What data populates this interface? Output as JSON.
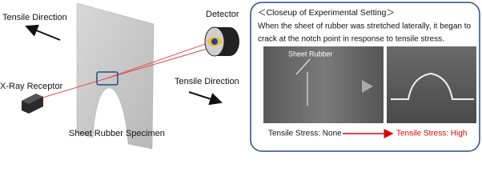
{
  "left": {
    "tensile_direction_top": "Tensile Direction",
    "tensile_direction_bottom": "Tensile Direction",
    "detector": "Detector",
    "xray_receptor": "X-Ray Receptor",
    "specimen": "Sheet Rubber Specimen"
  },
  "closeup": {
    "title": "＜Closeup of Experimental Setting＞",
    "description": [
      "When the sheet of rubber was stretched laterally, it began to",
      "crack at the notch point in response to tensile stress."
    ],
    "image_label": "Sheet Rubber",
    "stress_before": "Tensile Stress: None",
    "stress_after": "Tensile Stress: High"
  }
}
